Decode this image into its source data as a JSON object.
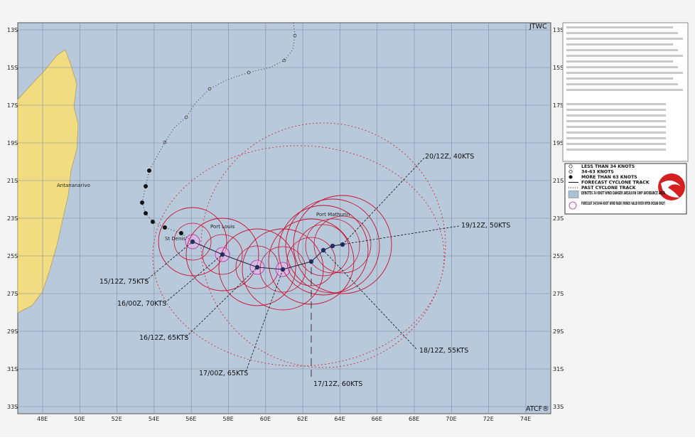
{
  "header": {
    "agency": "JTWC",
    "footer": "ATCF®"
  },
  "lat_labels": [
    "13S",
    "15S",
    "17S",
    "19S",
    "21S",
    "23S",
    "25S",
    "27S",
    "29S",
    "31S",
    "33S"
  ],
  "lon_labels": [
    "48E",
    "50E",
    "52E",
    "54E",
    "56E",
    "58E",
    "60E",
    "62E",
    "64E",
    "66E",
    "68E",
    "70E",
    "72E",
    "74E"
  ],
  "places": [
    "Antananarivo",
    "St Denis",
    "Port Louis",
    "Port Mathurin"
  ],
  "forecast_labels": [
    "15/12Z, 75KTS",
    "16/00Z, 70KTS",
    "16/12Z, 65KTS",
    "17/00Z, 65KTS",
    "17/12Z, 60KTS",
    "18/12Z, 55KTS",
    "19/12Z, 50KTS",
    "20/12Z, 40KTS"
  ],
  "legend": {
    "items": [
      "LESS THAN 34 KNOTS",
      "34-63 KNOTS",
      "MORE THAN 63 KNOTS",
      "FORECAST CYCLONE TRACK",
      "PAST CYCLONE TRACK",
      "DENOTES 34 KNOT WIND DANGER AREA/USN SHIP AVOIDANCE AREA",
      "FORECAST 34/50/64 KNOT WIND RADII (WINDS VALID OVER OPEN OCEAN ONLY)"
    ]
  }
}
